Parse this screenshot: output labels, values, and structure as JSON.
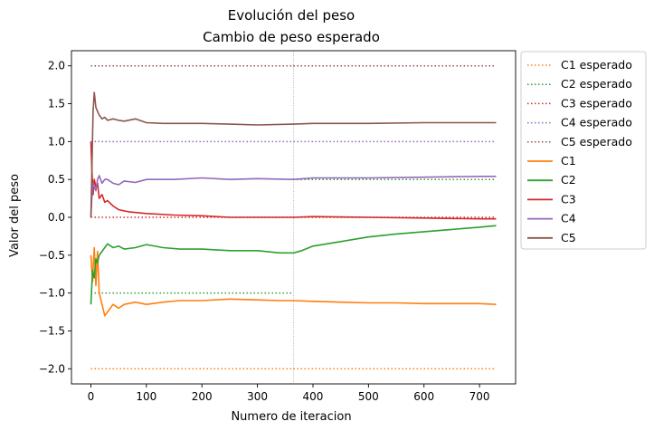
{
  "chart_data": {
    "type": "line",
    "title": "Evolución del peso",
    "subtitle": "Cambio de peso esperado",
    "xlabel": "Numero de iteracion",
    "ylabel": "Valor del peso",
    "xlim": [
      -35,
      765
    ],
    "ylim": [
      -2.2,
      2.2
    ],
    "xticks": [
      0,
      100,
      200,
      300,
      400,
      500,
      600,
      700
    ],
    "xtick_labels": [
      "0",
      "100",
      "200",
      "300",
      "400",
      "500",
      "600",
      "700"
    ],
    "yticks": [
      -2.0,
      -1.5,
      -1.0,
      -0.5,
      0.0,
      0.5,
      1.0,
      1.5,
      2.0
    ],
    "ytick_labels": [
      "−2.0",
      "−1.5",
      "−1.0",
      "−0.5",
      "0.0",
      "0.5",
      "1.0",
      "1.5",
      "2.0"
    ],
    "grid": false,
    "legend_position": "outside-right",
    "change_marker_x": 365,
    "expected_series": [
      {
        "name": "C1 esperado",
        "color": "#ff7f0e",
        "segments": [
          {
            "x": [
              0,
              730
            ],
            "y": [
              -2.0,
              -2.0
            ]
          }
        ]
      },
      {
        "name": "C2 esperado",
        "color": "#2ca02c",
        "segments": [
          {
            "x": [
              0,
              365
            ],
            "y": [
              -1.0,
              -1.0
            ]
          },
          {
            "x": [
              365,
              730
            ],
            "y": [
              0.5,
              0.5
            ]
          }
        ]
      },
      {
        "name": "C3 esperado",
        "color": "#d62728",
        "segments": [
          {
            "x": [
              0,
              730
            ],
            "y": [
              0.0,
              0.0
            ]
          }
        ]
      },
      {
        "name": "C4 esperado",
        "color": "#9467bd",
        "segments": [
          {
            "x": [
              0,
              730
            ],
            "y": [
              1.0,
              1.0
            ]
          }
        ]
      },
      {
        "name": "C5 esperado",
        "color": "#8c564b",
        "segments": [
          {
            "x": [
              0,
              730
            ],
            "y": [
              2.0,
              2.0
            ]
          }
        ]
      }
    ],
    "series": [
      {
        "name": "C1",
        "color": "#ff7f0e",
        "x": [
          0,
          3,
          6,
          9,
          12,
          15,
          20,
          25,
          30,
          35,
          40,
          50,
          60,
          80,
          100,
          130,
          160,
          200,
          250,
          300,
          340,
          365,
          400,
          450,
          500,
          550,
          600,
          650,
          700,
          730
        ],
        "y": [
          -0.5,
          -0.85,
          -0.4,
          -0.9,
          -0.45,
          -1.0,
          -1.15,
          -1.3,
          -1.25,
          -1.2,
          -1.15,
          -1.2,
          -1.15,
          -1.12,
          -1.15,
          -1.12,
          -1.1,
          -1.1,
          -1.08,
          -1.09,
          -1.1,
          -1.1,
          -1.11,
          -1.12,
          -1.13,
          -1.13,
          -1.14,
          -1.14,
          -1.14,
          -1.15
        ]
      },
      {
        "name": "C2",
        "color": "#2ca02c",
        "x": [
          0,
          3,
          6,
          9,
          12,
          15,
          20,
          25,
          30,
          40,
          50,
          60,
          80,
          100,
          130,
          160,
          200,
          250,
          300,
          340,
          365,
          380,
          400,
          450,
          500,
          550,
          600,
          650,
          700,
          730
        ],
        "y": [
          -1.15,
          -0.7,
          -0.8,
          -0.55,
          -0.6,
          -0.5,
          -0.45,
          -0.4,
          -0.35,
          -0.4,
          -0.38,
          -0.42,
          -0.4,
          -0.36,
          -0.4,
          -0.42,
          -0.42,
          -0.44,
          -0.44,
          -0.47,
          -0.47,
          -0.44,
          -0.38,
          -0.32,
          -0.26,
          -0.22,
          -0.19,
          -0.16,
          -0.13,
          -0.11
        ]
      },
      {
        "name": "C3",
        "color": "#d62728",
        "x": [
          0,
          2,
          4,
          6,
          9,
          12,
          15,
          20,
          25,
          30,
          40,
          50,
          70,
          100,
          150,
          200,
          250,
          300,
          365,
          400,
          500,
          600,
          700,
          730
        ],
        "y": [
          1.0,
          0.6,
          0.3,
          0.5,
          0.4,
          0.45,
          0.25,
          0.3,
          0.2,
          0.22,
          0.15,
          0.1,
          0.07,
          0.05,
          0.03,
          0.02,
          0.0,
          0.0,
          0.0,
          0.01,
          0.0,
          -0.01,
          -0.02,
          -0.02
        ]
      },
      {
        "name": "C4",
        "color": "#9467bd",
        "x": [
          0,
          2,
          4,
          6,
          9,
          12,
          15,
          20,
          25,
          30,
          40,
          50,
          60,
          80,
          100,
          150,
          200,
          250,
          300,
          365,
          400,
          500,
          600,
          700,
          730
        ],
        "y": [
          0.0,
          0.3,
          0.45,
          0.4,
          0.35,
          0.5,
          0.55,
          0.45,
          0.5,
          0.5,
          0.45,
          0.43,
          0.48,
          0.46,
          0.5,
          0.5,
          0.52,
          0.5,
          0.51,
          0.5,
          0.52,
          0.52,
          0.53,
          0.54,
          0.54
        ]
      },
      {
        "name": "C5",
        "color": "#8c564b",
        "x": [
          0,
          2,
          4,
          6,
          9,
          12,
          15,
          20,
          25,
          30,
          40,
          50,
          60,
          80,
          100,
          130,
          160,
          200,
          250,
          300,
          365,
          400,
          500,
          600,
          700,
          730
        ],
        "y": [
          0.0,
          0.7,
          1.4,
          1.65,
          1.45,
          1.4,
          1.35,
          1.3,
          1.32,
          1.28,
          1.3,
          1.28,
          1.27,
          1.3,
          1.25,
          1.24,
          1.24,
          1.24,
          1.23,
          1.22,
          1.23,
          1.24,
          1.24,
          1.25,
          1.25,
          1.25
        ]
      }
    ]
  }
}
